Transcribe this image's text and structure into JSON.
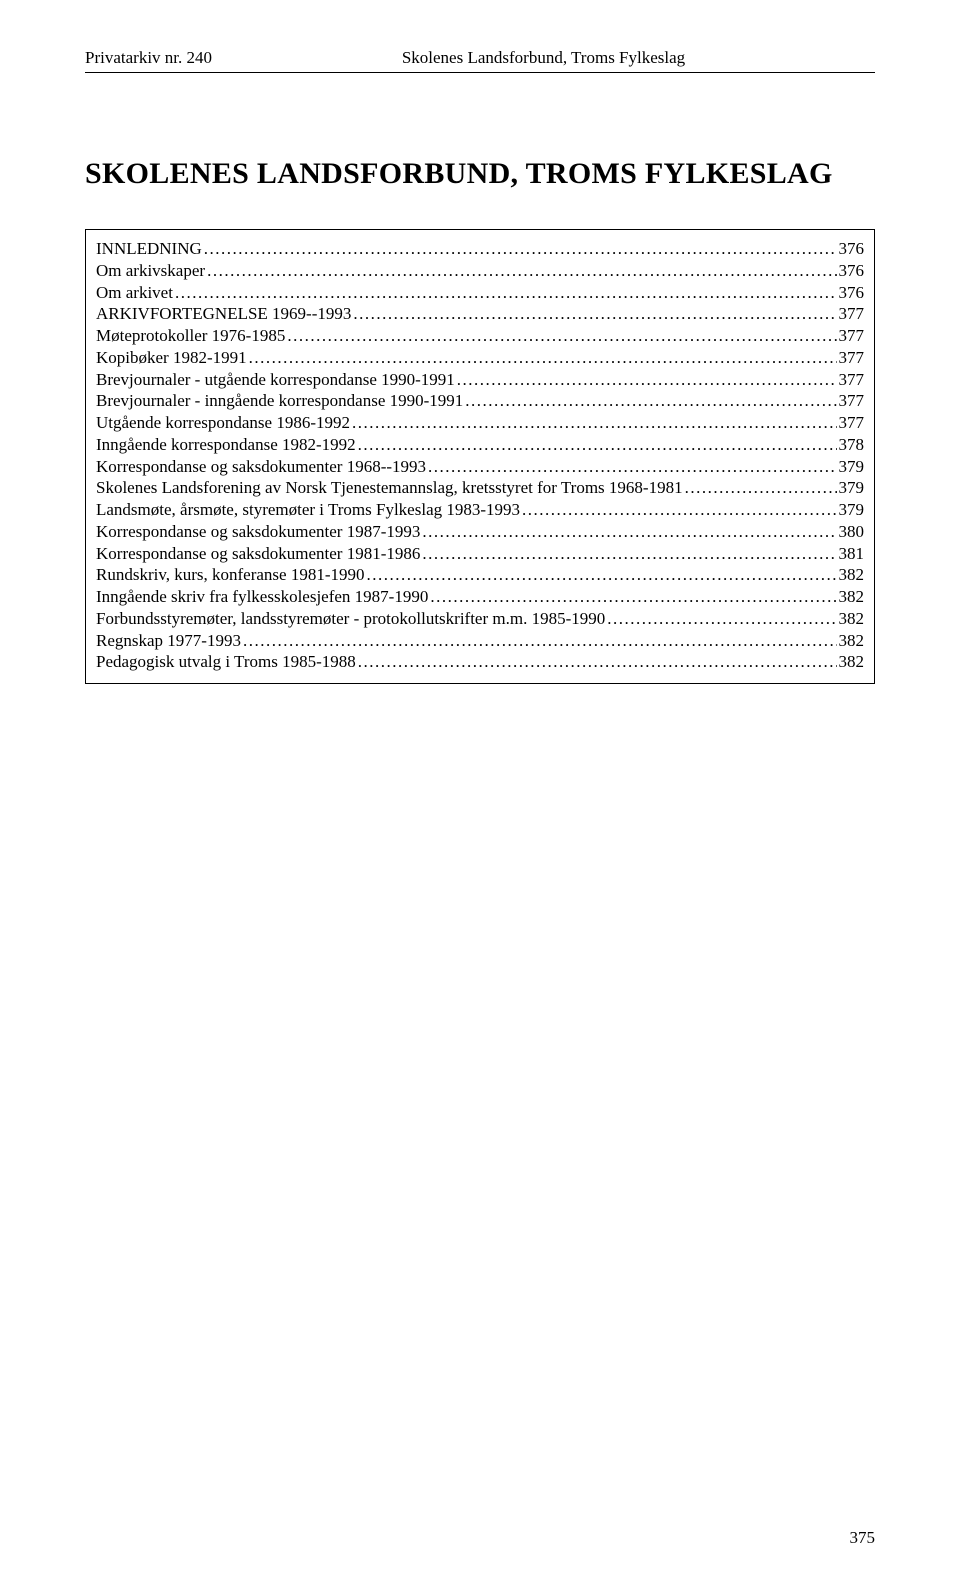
{
  "colors": {
    "text": "#000000",
    "background": "#ffffff",
    "rule": "#000000",
    "border": "#000000"
  },
  "typography": {
    "font_family": "Times New Roman",
    "header_fontsize_pt": 12,
    "title_fontsize_pt": 22,
    "title_weight": "bold",
    "toc_fontsize_pt": 12,
    "pagenum_fontsize_pt": 12
  },
  "header": {
    "left": "Privatarkiv nr. 240",
    "right": "Skolenes Landsforbund, Troms Fylkeslag"
  },
  "title": "SKOLENES LANDSFORBUND, TROMS FYLKESLAG",
  "toc": [
    {
      "label": "INNLEDNING",
      "page": "376"
    },
    {
      "label": "Om arkivskaper",
      "page": "376"
    },
    {
      "label": "Om arkivet",
      "page": "376"
    },
    {
      "label": "ARKIVFORTEGNELSE 1969--1993",
      "page": "377"
    },
    {
      "label": "Møteprotokoller 1976-1985",
      "page": "377"
    },
    {
      "label": "Kopibøker 1982-1991",
      "page": "377"
    },
    {
      "label": "Brevjournaler - utgående korrespondanse 1990-1991",
      "page": "377"
    },
    {
      "label": "Brevjournaler - inngående korrespondanse 1990-1991",
      "page": "377"
    },
    {
      "label": "Utgående korrespondanse 1986-1992",
      "page": "377"
    },
    {
      "label": "Inngående korrespondanse 1982-1992",
      "page": "378"
    },
    {
      "label": "Korrespondanse og saksdokumenter 1968--1993",
      "page": "379"
    },
    {
      "label": "Skolenes Landsforening av Norsk Tjenestemannslag, kretsstyret for Troms 1968-1981",
      "page": "379"
    },
    {
      "label": "Landsmøte, årsmøte, styremøter i Troms Fylkeslag 1983-1993",
      "page": "379"
    },
    {
      "label": "Korrespondanse og saksdokumenter  1987-1993",
      "page": "380"
    },
    {
      "label": "Korrespondanse og saksdokumenter 1981-1986",
      "page": "381"
    },
    {
      "label": "Rundskriv, kurs, konferanse 1981-1990",
      "page": "382"
    },
    {
      "label": "Inngående skriv fra fylkesskolesjefen 1987-1990",
      "page": "382"
    },
    {
      "label": "Forbundsstyremøter, landsstyremøter - protokollutskrifter m.m. 1985-1990",
      "page": "382"
    },
    {
      "label": "Regnskap 1977-1993",
      "page": "382"
    },
    {
      "label": "Pedagogisk utvalg i Troms 1985-1988",
      "page": "382"
    }
  ],
  "page_number": "375"
}
